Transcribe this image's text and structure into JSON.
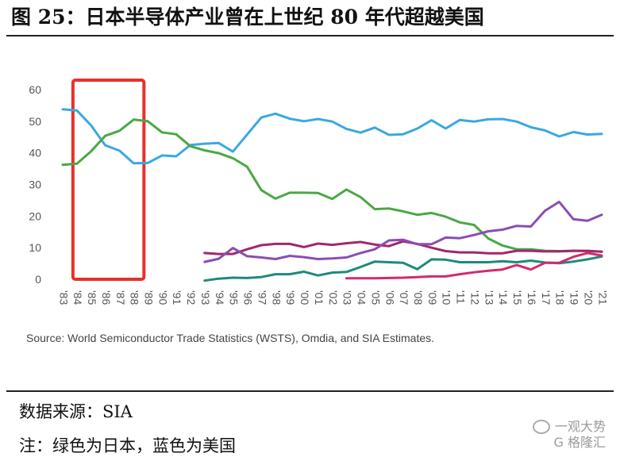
{
  "header": {
    "title": "图 25：日本半导体产业曾在上世纪 80 年代超越美国"
  },
  "chart_data": {
    "type": "line",
    "title": "",
    "xlabel": "",
    "ylabel": "",
    "ylim": [
      0,
      60
    ],
    "yticks": [
      "0",
      "10",
      "20",
      "30",
      "40",
      "50",
      "60"
    ],
    "x": [
      "'83",
      "'84",
      "'85",
      "'86",
      "'87",
      "'88",
      "'89",
      "'90",
      "'91",
      "'92",
      "'93",
      "'94",
      "'95",
      "'96",
      "'97",
      "'98",
      "'99",
      "'00",
      "'01",
      "'02",
      "'03",
      "'04",
      "'05",
      "'06",
      "'07",
      "'08",
      "'09",
      "'10",
      "'11",
      "'12",
      "'13",
      "'14",
      "'15",
      "'16",
      "'17",
      "'18",
      "'19",
      "'20",
      "'21"
    ],
    "grid": false,
    "legend": "none",
    "highlight_box": {
      "x_from": "'84",
      "x_to": "'88",
      "y_from": 0,
      "y_to": 63,
      "color": "#e8302a"
    },
    "series": [
      {
        "color": "#3aa8e0",
        "values": [
          53.8,
          53.4,
          48.7,
          42.4,
          40.7,
          36.7,
          36.8,
          39.2,
          38.9,
          42.5,
          42.9,
          43.1,
          40.4,
          45.8,
          51.2,
          52.4,
          50.8,
          50.0,
          50.7,
          49.9,
          47.6,
          46.4,
          48.0,
          45.7,
          45.9,
          47.7,
          50.3,
          47.7,
          50.4,
          49.9,
          50.6,
          50.7,
          49.9,
          48.1,
          47.1,
          45.2,
          46.6,
          45.8,
          46.0
        ]
      },
      {
        "color": "#4aa844",
        "values": [
          36.2,
          36.6,
          40.5,
          45.4,
          47.0,
          50.5,
          50.0,
          46.5,
          45.9,
          42.1,
          40.8,
          39.9,
          38.3,
          35.6,
          28.2,
          25.5,
          27.4,
          27.4,
          27.3,
          25.4,
          28.4,
          26.0,
          22.2,
          22.4,
          21.5,
          20.4,
          21.0,
          19.8,
          18.0,
          17.2,
          12.9,
          10.7,
          9.5,
          9.5,
          9.0,
          8.9,
          9.0,
          8.9,
          8.7
        ]
      },
      {
        "color": "#a0286e",
        "values": [
          null,
          null,
          null,
          null,
          null,
          null,
          null,
          null,
          null,
          null,
          8.3,
          8.0,
          8.0,
          9.5,
          10.8,
          11.2,
          11.2,
          10.2,
          11.3,
          10.9,
          11.4,
          11.8,
          11.0,
          10.5,
          12.0,
          11.2,
          10.0,
          8.9,
          8.5,
          8.5,
          8.2,
          8.2,
          9.0,
          9.0,
          8.8,
          8.8,
          9.0,
          9.0,
          8.7
        ]
      },
      {
        "color": "#8a4db3",
        "values": [
          null,
          null,
          null,
          null,
          null,
          null,
          null,
          null,
          null,
          null,
          5.5,
          6.5,
          9.9,
          7.3,
          6.9,
          6.4,
          7.4,
          7.0,
          6.4,
          6.6,
          6.9,
          8.3,
          9.5,
          12.3,
          12.5,
          11.1,
          11.1,
          13.2,
          13.0,
          14.0,
          15.2,
          15.7,
          16.9,
          16.7,
          21.7,
          24.5,
          19.0,
          18.5,
          20.4
        ]
      },
      {
        "color": "#1e8a7a",
        "values": [
          null,
          null,
          null,
          null,
          null,
          null,
          null,
          null,
          null,
          null,
          -0.4,
          0.2,
          0.5,
          0.4,
          0.7,
          1.6,
          1.6,
          2.4,
          1.2,
          2.1,
          2.3,
          3.9,
          5.6,
          5.4,
          5.2,
          3.2,
          6.3,
          6.2,
          5.4,
          5.4,
          5.4,
          5.7,
          5.4,
          5.9,
          5.3,
          5.1,
          5.6,
          6.3,
          7.2
        ]
      },
      {
        "color": "#d22a6e",
        "values": [
          null,
          null,
          null,
          null,
          null,
          null,
          null,
          null,
          null,
          null,
          null,
          null,
          null,
          null,
          null,
          null,
          null,
          null,
          null,
          null,
          0.3,
          0.3,
          0.3,
          0.4,
          0.5,
          0.7,
          0.9,
          0.9,
          1.6,
          2.2,
          2.7,
          3.1,
          4.5,
          3.1,
          5.2,
          5.2,
          7.1,
          8.3,
          7.5
        ]
      }
    ],
    "source_note": "Source: World Semiconductor Trade Statistics (WSTS), Omdia, and SIA Estimates."
  },
  "footer": {
    "source": "数据来源：SIA",
    "note": "注：绿色为日本，蓝色为美国"
  },
  "watermark": {
    "line1": "一观大势",
    "line2": "G 格隆汇"
  }
}
